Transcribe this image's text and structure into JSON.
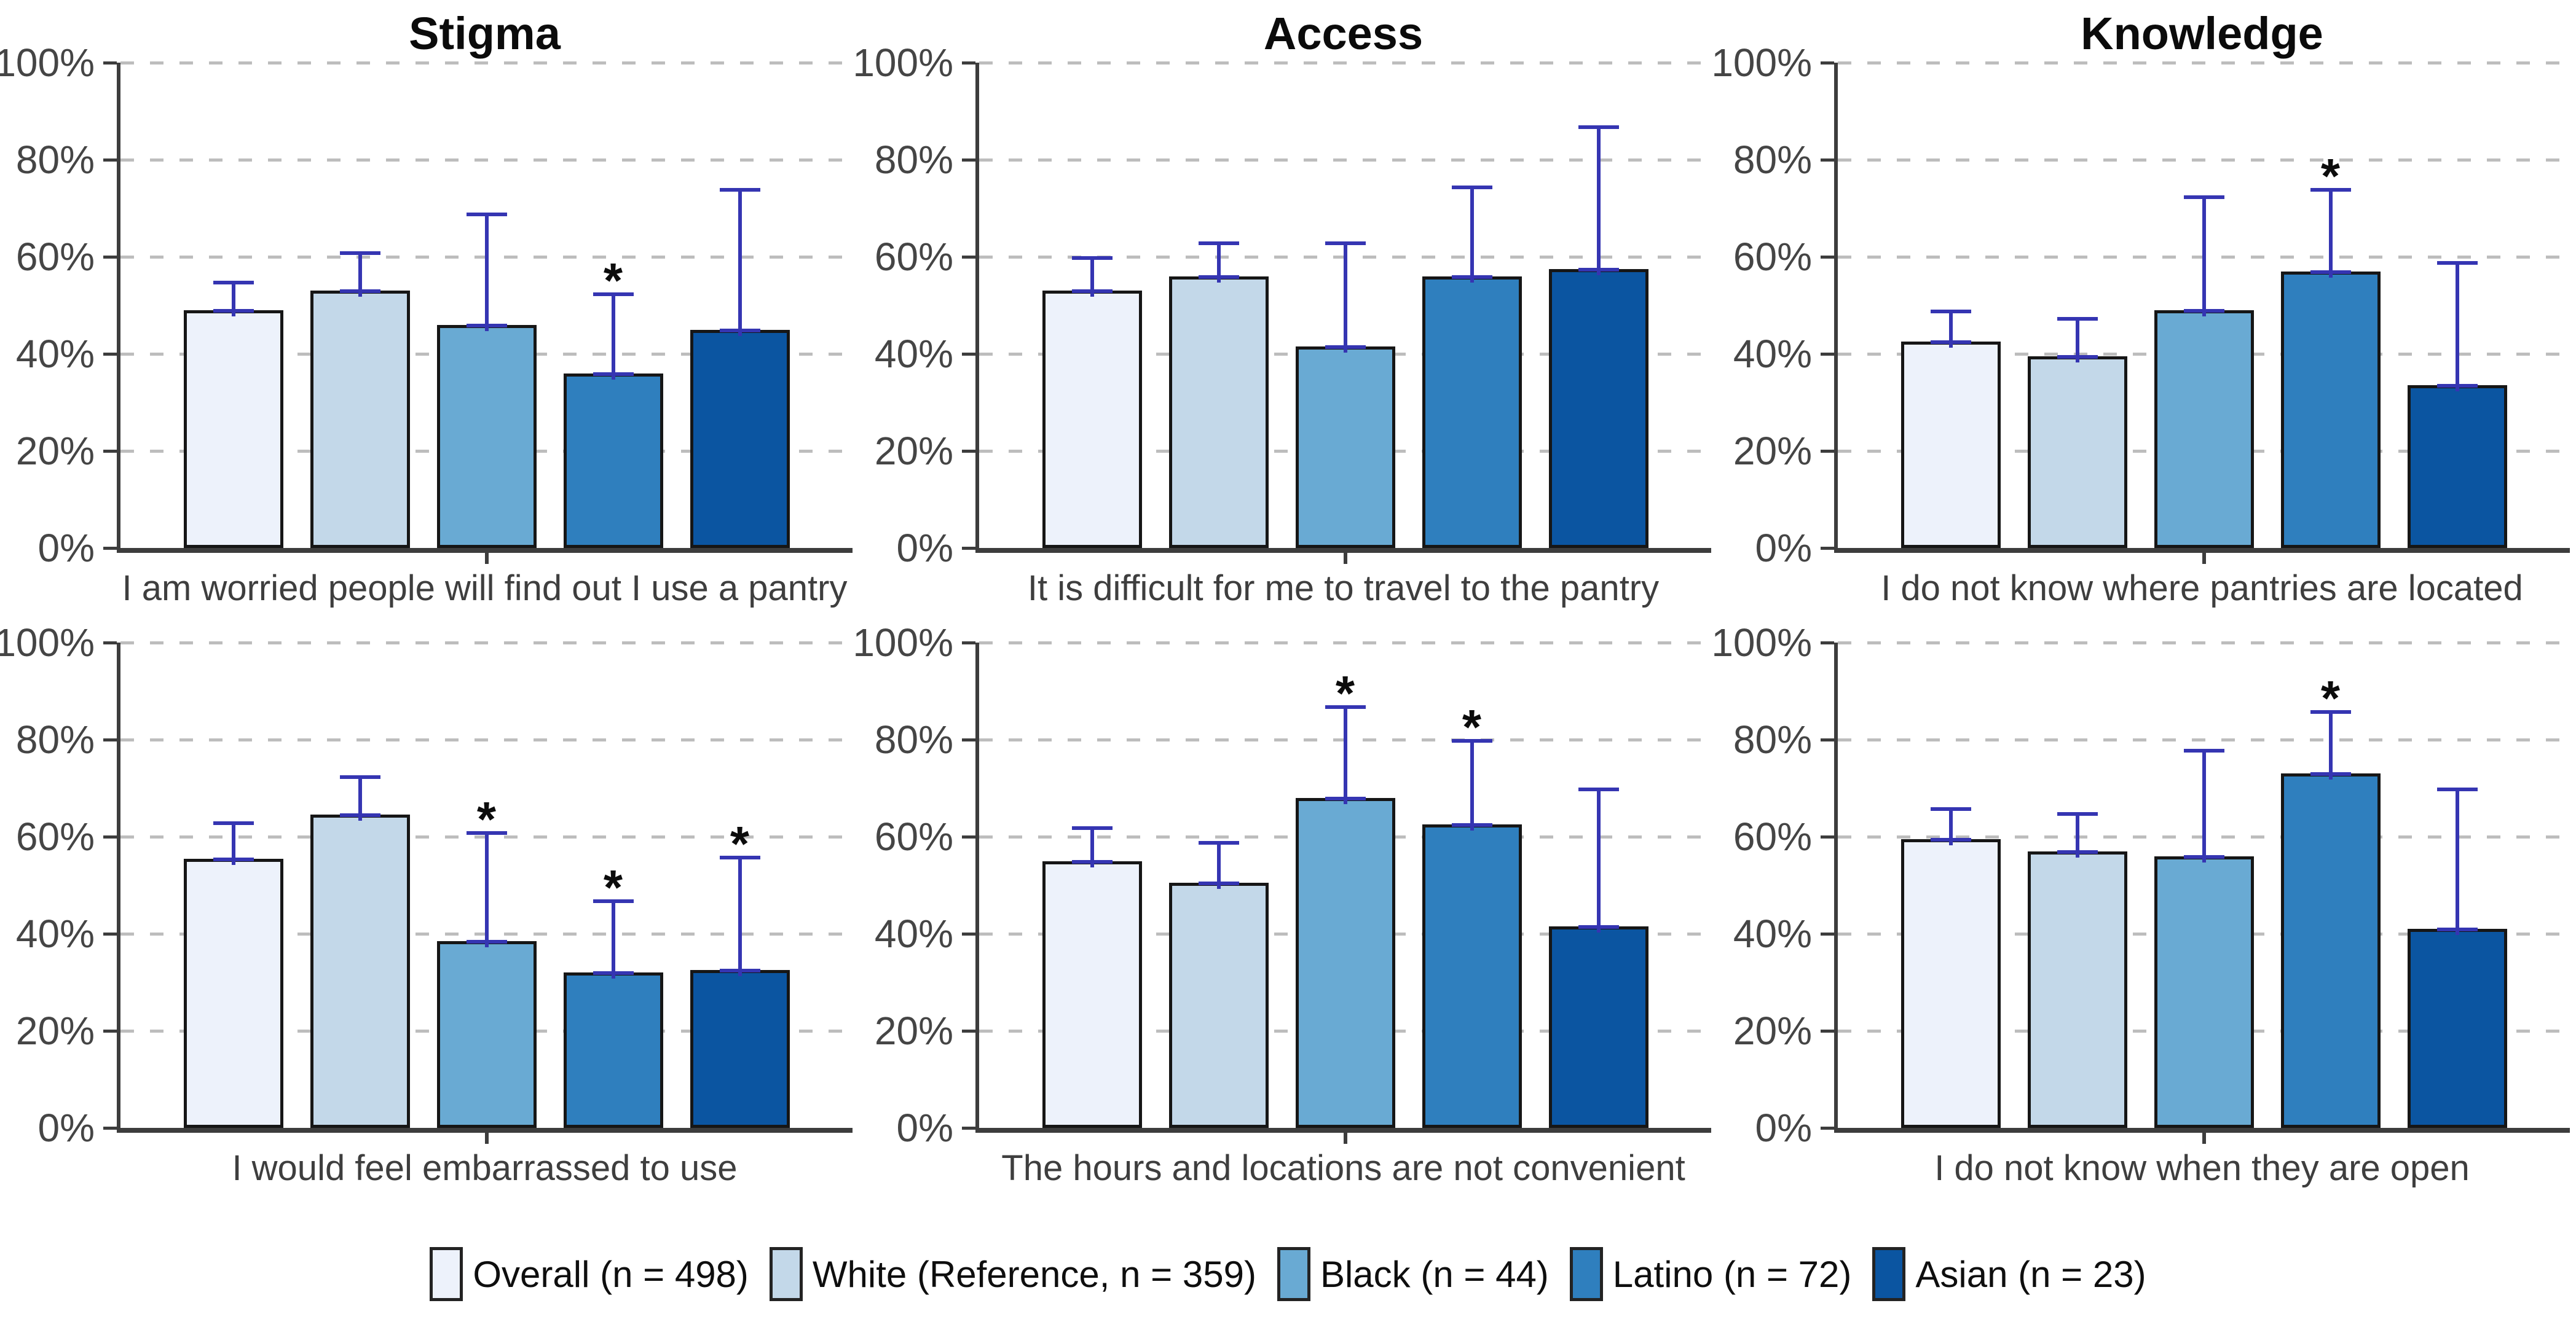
{
  "figure": {
    "background": "#ffffff",
    "bar_border_color": "#161616",
    "error_bar_color": "#3535b2",
    "axis_color": "#3d3d3d",
    "gridline_color": "#bdbdbd"
  },
  "axis": {
    "tick_values": [
      100,
      80,
      60,
      40,
      20,
      0
    ],
    "tick_labels": [
      "100%",
      "80%",
      "60%",
      "40%",
      "20%",
      "0%"
    ],
    "significance_marker": "*"
  },
  "legend": {
    "entries": [
      {
        "label": "Overall (n = 498)",
        "color": "#edf2fb"
      },
      {
        "label": "White (Reference, n = 359)",
        "color": "#c3d8e9"
      },
      {
        "label": "Black (n = 44)",
        "color": "#69aad3"
      },
      {
        "label": "Latino (n = 72)",
        "color": "#2f7fbe"
      },
      {
        "label": "Asian (n = 23)",
        "color": "#0b55a1"
      }
    ]
  },
  "chart_data": [
    {
      "type": "bar",
      "title": "Stigma",
      "xlabel": "I am worried people will find out I use a pantry",
      "categories": [
        "Overall",
        "White",
        "Black",
        "Latino",
        "Asian"
      ],
      "values": [
        49,
        53,
        46,
        36,
        45
      ],
      "ci_upper": [
        55,
        61,
        69,
        52.5,
        74
      ],
      "significant": [
        false,
        false,
        false,
        true,
        false
      ],
      "ylabel": "",
      "ylim": [
        0,
        100
      ],
      "grid": "dashed-horizontal",
      "legend_position": "bottom-shared"
    },
    {
      "type": "bar",
      "title": "Access",
      "xlabel": "It is difficult for me to travel to the pantry",
      "categories": [
        "Overall",
        "White",
        "Black",
        "Latino",
        "Asian"
      ],
      "values": [
        53,
        56,
        41.5,
        56,
        57.5
      ],
      "ci_upper": [
        60,
        63,
        63,
        74.5,
        87
      ],
      "significant": [
        false,
        false,
        false,
        false,
        false
      ],
      "ylabel": "",
      "ylim": [
        0,
        100
      ],
      "grid": "dashed-horizontal",
      "legend_position": "bottom-shared"
    },
    {
      "type": "bar",
      "title": "Knowledge",
      "xlabel": "I do not know where pantries are located",
      "categories": [
        "Overall",
        "White",
        "Black",
        "Latino",
        "Asian"
      ],
      "values": [
        42.5,
        39.5,
        49,
        57,
        33.5
      ],
      "ci_upper": [
        49,
        47.5,
        72.5,
        74,
        59
      ],
      "significant": [
        false,
        false,
        false,
        true,
        false
      ],
      "ylabel": "",
      "ylim": [
        0,
        100
      ],
      "grid": "dashed-horizontal",
      "legend_position": "bottom-shared"
    },
    {
      "type": "bar",
      "title": "",
      "xlabel": "I would feel embarrassed to use",
      "categories": [
        "Overall",
        "White",
        "Black",
        "Latino",
        "Asian"
      ],
      "values": [
        55.5,
        64.5,
        38.5,
        32,
        32.5
      ],
      "ci_upper": [
        63,
        72.5,
        61,
        47,
        56
      ],
      "significant": [
        false,
        false,
        true,
        true,
        true
      ],
      "ylabel": "",
      "ylim": [
        0,
        100
      ],
      "grid": "dashed-horizontal",
      "legend_position": "bottom-shared"
    },
    {
      "type": "bar",
      "title": "",
      "xlabel": "The hours and locations are not convenient",
      "categories": [
        "Overall",
        "White",
        "Black",
        "Latino",
        "Asian"
      ],
      "values": [
        55,
        50.5,
        68,
        62.5,
        41.5
      ],
      "ci_upper": [
        62,
        59,
        87,
        80,
        70
      ],
      "significant": [
        false,
        false,
        true,
        true,
        false
      ],
      "ylabel": "",
      "ylim": [
        0,
        100
      ],
      "grid": "dashed-horizontal",
      "legend_position": "bottom-shared"
    },
    {
      "type": "bar",
      "title": "",
      "xlabel": "I do not know when they are open",
      "categories": [
        "Overall",
        "White",
        "Black",
        "Latino",
        "Asian"
      ],
      "values": [
        59.5,
        57,
        56,
        73,
        41
      ],
      "ci_upper": [
        66,
        65,
        78,
        86,
        70
      ],
      "significant": [
        false,
        false,
        false,
        true,
        false
      ],
      "ylabel": "",
      "ylim": [
        0,
        100
      ],
      "grid": "dashed-horizontal",
      "legend_position": "bottom-shared"
    }
  ]
}
